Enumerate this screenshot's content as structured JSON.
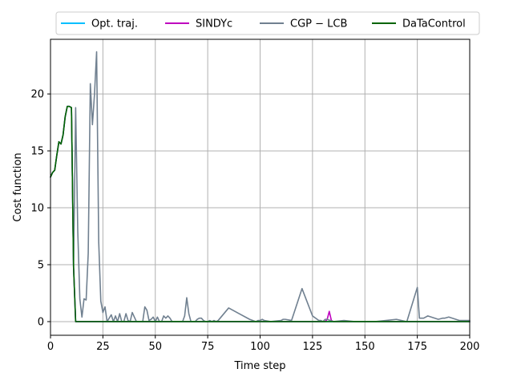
{
  "chart_data": {
    "type": "line",
    "xlabel": "Time step",
    "ylabel": "Cost function",
    "xlim": [
      0,
      200
    ],
    "ylim": [
      -1.2,
      24.8
    ],
    "xticks": [
      0,
      25,
      50,
      75,
      100,
      125,
      150,
      175,
      200
    ],
    "yticks": [
      0,
      5,
      10,
      15,
      20
    ],
    "xtick_labels": [
      "0",
      "25",
      "50",
      "75",
      "100",
      "125",
      "150",
      "175",
      "200"
    ],
    "ytick_labels": [
      "0",
      "5",
      "10",
      "15",
      "20"
    ],
    "grid": true,
    "legend_position": "top-center",
    "series": [
      {
        "name": "Opt. traj.",
        "color": "#00bfff",
        "x": [
          0,
          1,
          2,
          3,
          4,
          5,
          6,
          7,
          8,
          9,
          10,
          11,
          12,
          200
        ],
        "y": [
          12.7,
          13.1,
          13.3,
          14.6,
          15.8,
          15.6,
          16.4,
          18.0,
          18.9,
          18.9,
          18.8,
          4.8,
          0.0,
          0.0
        ]
      },
      {
        "name": "SINDYc",
        "color": "#bf00bf",
        "x": [
          0,
          1,
          2,
          3,
          4,
          5,
          6,
          7,
          8,
          9,
          10,
          11,
          12,
          130,
          131,
          132,
          133,
          134,
          135,
          200
        ],
        "y": [
          12.7,
          13.1,
          13.3,
          14.6,
          15.8,
          15.6,
          16.4,
          18.0,
          18.9,
          18.9,
          18.8,
          4.8,
          0.0,
          0.0,
          0.0,
          0.2,
          0.9,
          0.1,
          0.0,
          0.0
        ]
      },
      {
        "name": "CGP − LCB",
        "color": "#708090",
        "x": [
          0,
          1,
          2,
          3,
          4,
          5,
          6,
          7,
          8,
          9,
          10,
          11,
          12,
          13,
          14,
          15,
          16,
          17,
          18,
          19,
          20,
          21,
          22,
          23,
          24,
          25,
          26,
          27,
          28,
          29,
          30,
          31,
          32,
          33,
          34,
          35,
          36,
          37,
          38,
          39,
          40,
          41,
          42,
          43,
          44,
          45,
          46,
          47,
          48,
          49,
          50,
          51,
          52,
          53,
          54,
          55,
          56,
          57,
          58,
          59,
          60,
          61,
          62,
          63,
          64,
          65,
          66,
          67,
          68,
          69,
          70,
          71,
          72,
          73,
          74,
          75,
          76,
          77,
          78,
          79,
          80,
          85,
          90,
          95,
          98,
          99,
          100,
          101,
          102,
          105,
          110,
          111,
          112,
          115,
          120,
          125,
          128,
          129,
          130,
          131,
          132,
          135,
          140,
          145,
          147,
          148,
          150,
          155,
          160,
          165,
          170,
          175,
          176,
          177,
          178,
          179,
          180,
          185,
          187,
          188,
          190,
          195,
          197,
          198,
          200
        ],
        "y": [
          12.7,
          13.1,
          13.3,
          14.6,
          15.8,
          15.6,
          16.4,
          18.0,
          18.9,
          18.9,
          18.8,
          4.8,
          18.8,
          8.0,
          2.0,
          0.4,
          2.0,
          1.9,
          6.0,
          20.9,
          17.3,
          20.0,
          23.7,
          7.0,
          1.8,
          0.8,
          1.3,
          0.0,
          0.3,
          0.6,
          0.0,
          0.5,
          0.0,
          0.7,
          0.0,
          0.0,
          0.7,
          0.1,
          0.0,
          0.8,
          0.4,
          0.0,
          0.0,
          0.0,
          0.0,
          1.3,
          1.0,
          0.1,
          0.2,
          0.4,
          0.0,
          0.4,
          0.0,
          0.0,
          0.5,
          0.3,
          0.5,
          0.3,
          0.0,
          0.0,
          0.0,
          0.0,
          0.0,
          0.0,
          0.5,
          2.1,
          0.7,
          0.0,
          0.0,
          0.0,
          0.2,
          0.3,
          0.3,
          0.1,
          0.0,
          0.0,
          0.1,
          0.0,
          0.1,
          0.0,
          0.1,
          1.2,
          0.7,
          0.2,
          0.0,
          0.1,
          0.1,
          0.2,
          0.1,
          0.0,
          0.1,
          0.2,
          0.2,
          0.1,
          2.9,
          0.5,
          0.1,
          0.1,
          0.0,
          0.2,
          0.2,
          0.0,
          0.1,
          0.0,
          0.0,
          0.0,
          0.0,
          0.0,
          0.1,
          0.2,
          0.0,
          3.0,
          0.3,
          0.3,
          0.3,
          0.4,
          0.5,
          0.2,
          0.3,
          0.3,
          0.4,
          0.1,
          0.1,
          0.1,
          0.1
        ]
      },
      {
        "name": "DaTaControl",
        "color": "#006400",
        "x": [
          0,
          1,
          2,
          3,
          4,
          5,
          6,
          7,
          8,
          9,
          10,
          11,
          12,
          200
        ],
        "y": [
          12.7,
          13.1,
          13.3,
          14.6,
          15.8,
          15.6,
          16.4,
          18.0,
          18.9,
          18.9,
          18.8,
          4.8,
          0.0,
          0.0
        ]
      }
    ]
  }
}
